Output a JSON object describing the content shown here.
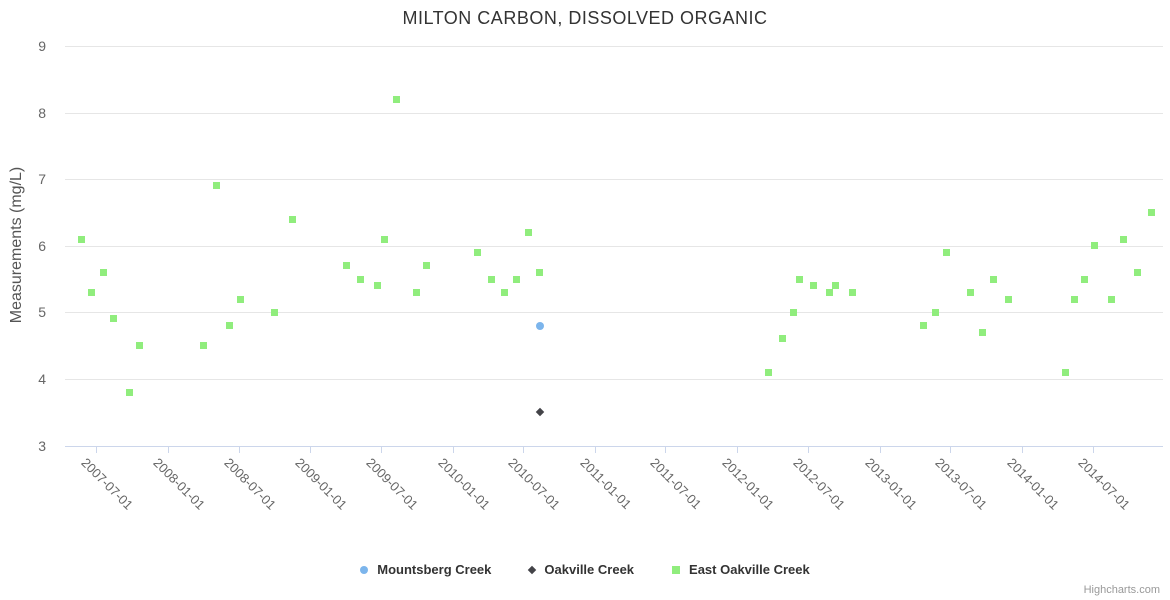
{
  "credit": "Highcharts.com",
  "chart_data": {
    "type": "scatter",
    "title": "MILTON CARBON, DISSOLVED ORGANIC",
    "xlabel": "",
    "ylabel": "Measurements (mg/L)",
    "ylim": [
      3,
      9
    ],
    "yticks": [
      9,
      8,
      7,
      6,
      5,
      4,
      3
    ],
    "xlim": [
      "2007-04-13",
      "2014-12-28"
    ],
    "x_tick_labels": [
      "2007-07-01",
      "2008-01-01",
      "2008-07-01",
      "2009-01-01",
      "2009-07-01",
      "2010-01-01",
      "2010-07-01",
      "2011-01-01",
      "2011-07-01",
      "2012-01-01",
      "2012-07-01",
      "2013-01-01",
      "2013-07-01",
      "2014-01-01",
      "2014-07-01"
    ],
    "grid": true,
    "legend_position": "bottom-center",
    "series": [
      {
        "name": "Mountsberg Creek",
        "marker": "circle",
        "color": "#7cb5ec",
        "points": [
          {
            "date": "2010-08-13",
            "value": 4.8
          }
        ]
      },
      {
        "name": "Oakville Creek",
        "marker": "diamond",
        "color": "#434348",
        "points": [
          {
            "date": "2010-08-13",
            "value": 3.5
          }
        ]
      },
      {
        "name": "East Oakville Creek",
        "marker": "square",
        "color": "#90ed7d",
        "points": [
          {
            "date": "2007-05-25",
            "value": 6.1
          },
          {
            "date": "2007-06-20",
            "value": 5.3
          },
          {
            "date": "2007-07-20",
            "value": 5.6
          },
          {
            "date": "2007-08-15",
            "value": 4.9
          },
          {
            "date": "2007-09-25",
            "value": 3.8
          },
          {
            "date": "2007-10-20",
            "value": 4.5
          },
          {
            "date": "2008-04-01",
            "value": 4.5
          },
          {
            "date": "2008-05-05",
            "value": 6.9
          },
          {
            "date": "2008-06-07",
            "value": 4.8
          },
          {
            "date": "2008-07-07",
            "value": 5.2
          },
          {
            "date": "2008-10-01",
            "value": 5.0
          },
          {
            "date": "2008-11-17",
            "value": 6.4
          },
          {
            "date": "2009-04-05",
            "value": 5.7
          },
          {
            "date": "2009-05-10",
            "value": 5.5
          },
          {
            "date": "2009-06-22",
            "value": 5.4
          },
          {
            "date": "2009-07-10",
            "value": 6.1
          },
          {
            "date": "2009-08-10",
            "value": 8.2
          },
          {
            "date": "2009-09-30",
            "value": 5.3
          },
          {
            "date": "2009-10-25",
            "value": 5.7
          },
          {
            "date": "2010-03-07",
            "value": 5.9
          },
          {
            "date": "2010-04-12",
            "value": 5.5
          },
          {
            "date": "2010-05-15",
            "value": 5.3
          },
          {
            "date": "2010-06-15",
            "value": 5.5
          },
          {
            "date": "2010-07-14",
            "value": 6.2
          },
          {
            "date": "2010-08-13",
            "value": 5.6
          },
          {
            "date": "2012-03-22",
            "value": 4.1
          },
          {
            "date": "2012-04-26",
            "value": 4.6
          },
          {
            "date": "2012-05-24",
            "value": 5.0
          },
          {
            "date": "2012-06-10",
            "value": 5.5
          },
          {
            "date": "2012-07-14",
            "value": 5.4
          },
          {
            "date": "2012-08-25",
            "value": 5.3
          },
          {
            "date": "2012-09-08",
            "value": 5.4
          },
          {
            "date": "2012-10-23",
            "value": 5.3
          },
          {
            "date": "2013-04-24",
            "value": 4.8
          },
          {
            "date": "2013-05-23",
            "value": 5.0
          },
          {
            "date": "2013-06-20",
            "value": 5.9
          },
          {
            "date": "2013-08-21",
            "value": 5.3
          },
          {
            "date": "2013-09-20",
            "value": 4.7
          },
          {
            "date": "2013-10-19",
            "value": 5.5
          },
          {
            "date": "2013-11-28",
            "value": 5.2
          },
          {
            "date": "2014-04-23",
            "value": 4.1
          },
          {
            "date": "2014-05-15",
            "value": 5.2
          },
          {
            "date": "2014-06-10",
            "value": 5.5
          },
          {
            "date": "2014-07-05",
            "value": 6.0
          },
          {
            "date": "2014-08-19",
            "value": 5.2
          },
          {
            "date": "2014-09-17",
            "value": 6.1
          },
          {
            "date": "2014-10-23",
            "value": 5.6
          },
          {
            "date": "2014-11-29",
            "value": 6.5
          }
        ]
      }
    ]
  }
}
